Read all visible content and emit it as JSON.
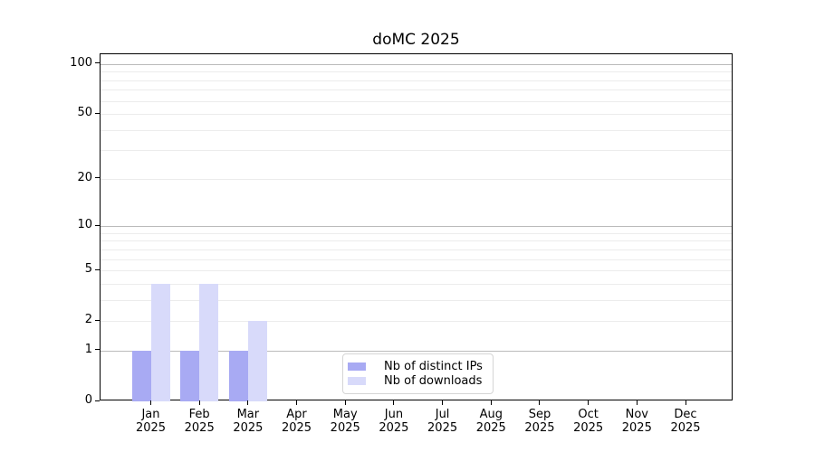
{
  "title": "doMC 2025",
  "chart_data": {
    "type": "bar",
    "title": "doMC 2025",
    "year": "2025",
    "categories": [
      "Jan",
      "Feb",
      "Mar",
      "Apr",
      "May",
      "Jun",
      "Jul",
      "Aug",
      "Sep",
      "Oct",
      "Nov",
      "Dec"
    ],
    "series": [
      {
        "name": "Nb of distinct IPs",
        "color": "#a8aaf3",
        "values": [
          1,
          1,
          1,
          0,
          0,
          0,
          0,
          0,
          0,
          0,
          0,
          0
        ]
      },
      {
        "name": "Nb of downloads",
        "color": "#d8dafa",
        "values": [
          4,
          4,
          2,
          0,
          0,
          0,
          0,
          0,
          0,
          0,
          0,
          0
        ]
      }
    ],
    "y_ticks": [
      0,
      1,
      2,
      5,
      10,
      20,
      50,
      100
    ],
    "y_major_gridlines": [
      1,
      10,
      100
    ],
    "y_minor_gridlines": [
      2,
      3,
      4,
      5,
      6,
      7,
      8,
      9,
      20,
      30,
      40,
      50,
      60,
      70,
      80,
      90
    ],
    "y_scale": "log1p",
    "ylim": [
      0,
      115
    ],
    "grid": "horizontal",
    "legend_position": "inside-bottom-center",
    "colors": {
      "axis": "#000000",
      "major_grid": "#bbbbbb",
      "minor_grid": "#ececec",
      "legend_border": "#d5d5d5"
    }
  }
}
